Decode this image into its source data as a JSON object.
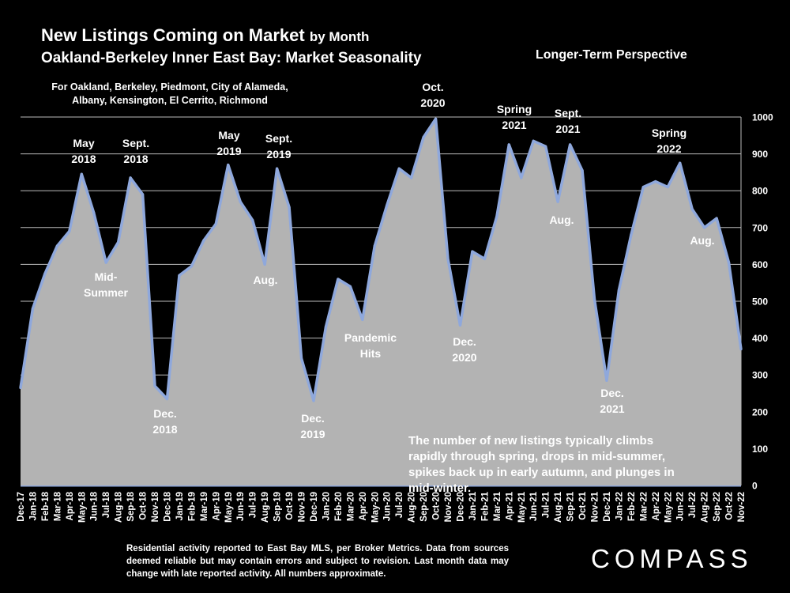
{
  "header": {
    "title_main": "New Listings Coming on Market",
    "title_suffix": "by Month",
    "subtitle": "Oakland-Berkeley Inner East Bay: Market Seasonality",
    "perspective": "Longer-Term Perspective",
    "areas": "For Oakland, Berkeley, Piedmont, City of Alameda, Albany, Kensington, El Cerrito, Richmond"
  },
  "footer": {
    "note": "Residential activity reported to East Bay MLS, per Broker Metrics. Data from sources deemed reliable but may contain errors and subject to revision. Last month data may change with late reported activity. All numbers approximate.",
    "logo": "COMPASS"
  },
  "chart_data": {
    "type": "area",
    "title": "New Listings Coming on Market by Month",
    "xlabel": "",
    "ylabel": "",
    "ylim": [
      0,
      1000
    ],
    "yticks": [
      0,
      100,
      200,
      300,
      400,
      500,
      600,
      700,
      800,
      900,
      1000
    ],
    "y_axis_side": "right",
    "grid": true,
    "colors": {
      "fill": "#b3b3b3",
      "line": "#8fa8dc",
      "grid": "#bcbcbc"
    },
    "categories": [
      "Dec-17",
      "Jan-18",
      "Feb-18",
      "Mar-18",
      "Apr-18",
      "May-18",
      "Jun-18",
      "Jul-18",
      "Aug-18",
      "Sep-18",
      "Oct-18",
      "Nov-18",
      "Dec-18",
      "Jan-19",
      "Feb-19",
      "Mar-19",
      "Apr-19",
      "May-19",
      "Jun-19",
      "Jul-19",
      "Aug-19",
      "Sep-19",
      "Oct-19",
      "Nov-19",
      "Dec-19",
      "Jan-20",
      "Feb-20",
      "Mar-20",
      "Apr-20",
      "May-20",
      "Jun-20",
      "Jul-20",
      "Aug-20",
      "Sep-20",
      "Oct-20",
      "Nov-20",
      "Dec-20",
      "Jan-21",
      "Feb-21",
      "Mar-21",
      "Apr-21",
      "May-21",
      "Jun-21",
      "Jul-21",
      "Aug-21",
      "Sep-21",
      "Oct-21",
      "Nov-21",
      "Dec-21",
      "Jan-22",
      "Feb-22",
      "Mar-22",
      "Apr-22",
      "May-22",
      "Jun-22",
      "Jul-22",
      "Aug-22",
      "Sep-22",
      "Oct-22",
      "Nov-22"
    ],
    "series": [
      {
        "name": "New Listings",
        "values": [
          265,
          480,
          575,
          650,
          690,
          845,
          740,
          605,
          660,
          835,
          790,
          270,
          235,
          570,
          595,
          665,
          710,
          870,
          770,
          720,
          600,
          860,
          755,
          345,
          230,
          430,
          560,
          540,
          450,
          650,
          760,
          860,
          835,
          945,
          995,
          615,
          435,
          635,
          615,
          730,
          925,
          835,
          935,
          920,
          770,
          925,
          855,
          505,
          285,
          530,
          680,
          810,
          825,
          810,
          875,
          750,
          700,
          725,
          605,
          370
        ]
      }
    ],
    "annotations": [
      {
        "label": "May",
        "label2": "2018",
        "category": "May-18"
      },
      {
        "label": "Sept.",
        "label2": "2018",
        "category": "Sep-18"
      },
      {
        "label": "Mid-",
        "label2": "Summer",
        "category": "Jul-18"
      },
      {
        "label": "Dec.",
        "label2": "2018",
        "category": "Dec-18"
      },
      {
        "label": "May",
        "label2": "2019",
        "category": "May-19"
      },
      {
        "label": "Sept.",
        "label2": "2019",
        "category": "Sep-19"
      },
      {
        "label": "Aug.",
        "label2": "",
        "category": "Aug-19"
      },
      {
        "label": "Dec.",
        "label2": "2019",
        "category": "Dec-19"
      },
      {
        "label": "Pandemic",
        "label2": "Hits",
        "category": "Apr-20"
      },
      {
        "label": "Oct.",
        "label2": "2020",
        "category": "Oct-20"
      },
      {
        "label": "Dec.",
        "label2": "2020",
        "category": "Dec-20"
      },
      {
        "label": "Spring",
        "label2": "2021",
        "category": "Apr-21"
      },
      {
        "label": "Sept.",
        "label2": "2021",
        "category": "Sep-21"
      },
      {
        "label": "Aug.",
        "label2": "",
        "category": "Aug-21"
      },
      {
        "label": "Dec.",
        "label2": "2021",
        "category": "Dec-21"
      },
      {
        "label": "Spring",
        "label2": "2022",
        "category": "May-22"
      },
      {
        "label": "Aug.",
        "label2": "",
        "category": "Aug-22"
      }
    ],
    "callout": "The number of new listings typically climbs rapidly through spring, drops in mid-summer, spikes back up in early autumn, and plunges in mid-winter."
  }
}
